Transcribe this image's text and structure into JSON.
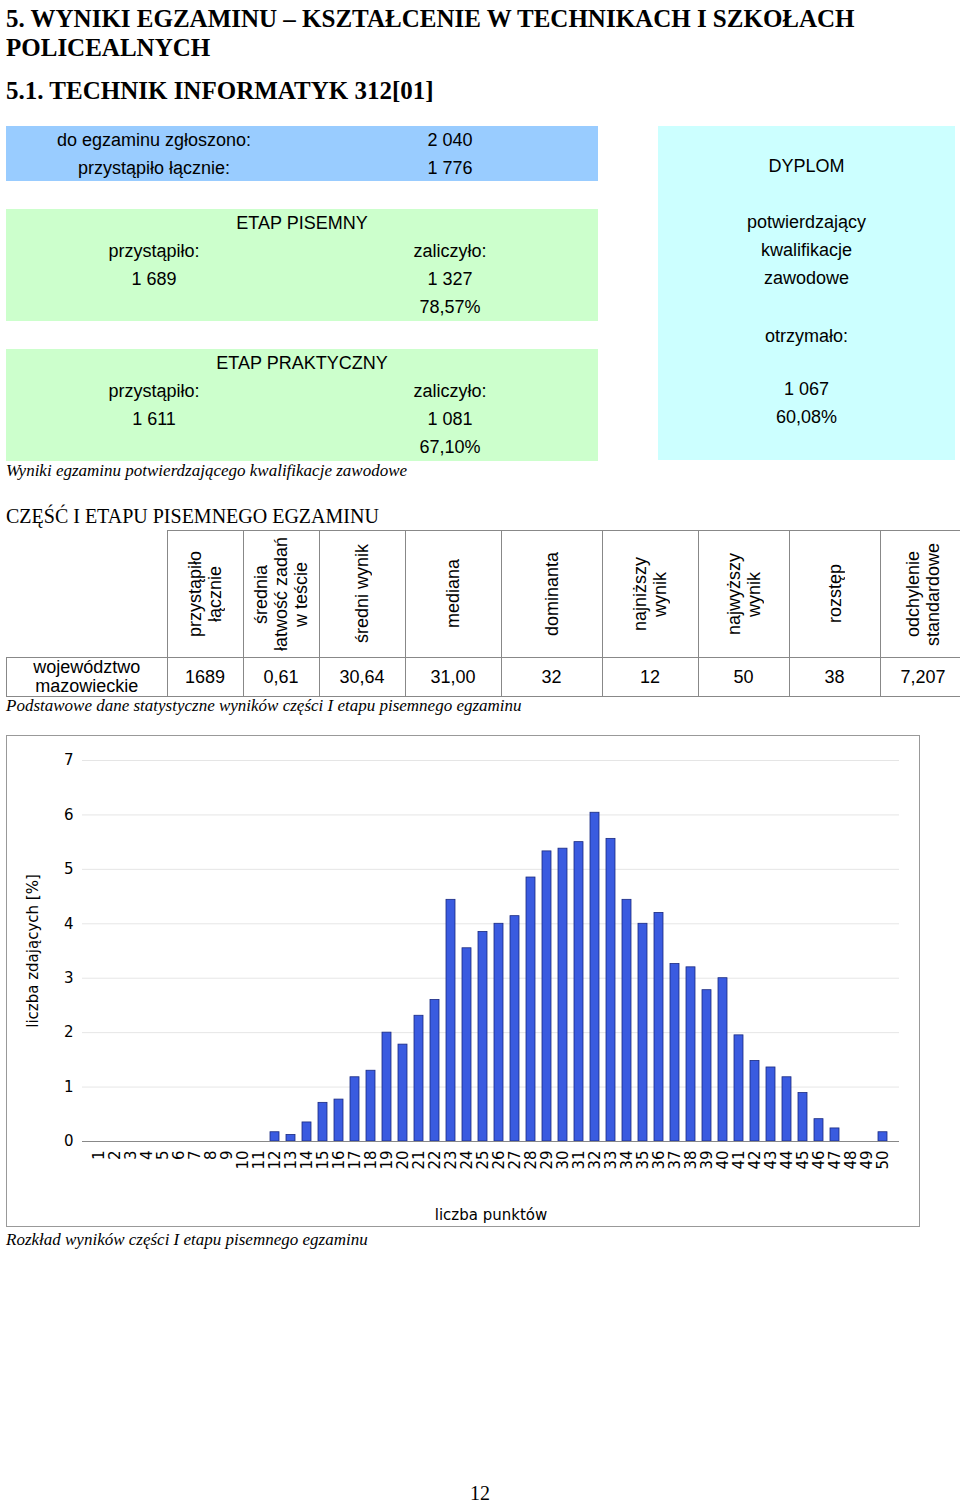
{
  "header": {
    "title": "5. WYNIKI EGZAMINU – KSZTAŁCENIE W TECHNIKACH I SZKOŁACH POLICEALNYCH",
    "subtitle": "5.1. TECHNIK INFORMATYK 312[01]"
  },
  "registration": {
    "rows": [
      [
        "do egzaminu zgłoszono:",
        "2 040"
      ],
      [
        "przystąpiło łącznie:",
        "1 776"
      ]
    ]
  },
  "written_stage": {
    "title": "ETAP PISEMNY",
    "labels": [
      "przystąpiło:",
      "zaliczyło:"
    ],
    "values": [
      "1 689",
      "1 327"
    ],
    "percent": "78,57%"
  },
  "practical_stage": {
    "title": "ETAP PRAKTYCZNY",
    "labels": [
      "przystąpiło:",
      "zaliczyło:"
    ],
    "values": [
      "1 611",
      "1 081"
    ],
    "percent": "67,10%"
  },
  "diploma": {
    "title": "DYPLOM",
    "description": [
      "potwierdzający",
      "kwalifikacje",
      "zawodowe"
    ],
    "label": "otrzymało:",
    "value": "1 067",
    "percent": "60,08%"
  },
  "summary_caption": "Wyniki egzaminu potwierdzającego kwalifikacje zawodowe",
  "section_title": "CZĘŚĆ I ETAPU PISEMNEGO EGZAMINU",
  "stats_table": {
    "header": [
      "",
      "przystąpiło łącznie",
      "średnia łatwość zadań w teście",
      "średni wynik",
      "mediana",
      "dominanta",
      "najniższy wynik",
      "najwyższy wynik",
      "rozstęp",
      "odchylenie standardowe"
    ],
    "rows": [
      [
        "województwo mazowieckie",
        "1689",
        "0,61",
        "30,64",
        "31,00",
        "32",
        "12",
        "50",
        "38",
        "7,207"
      ]
    ],
    "caption": "Podstawowe dane statystyczne wyników części I etapu pisemnego egzaminu"
  },
  "chart_data": {
    "type": "bar",
    "x_label": "liczba punktów",
    "y_label": "liczba zdających [%]",
    "categories": [
      "1",
      "2",
      "3",
      "4",
      "5",
      "6",
      "7",
      "8",
      "9",
      "10",
      "11",
      "12",
      "13",
      "14",
      "15",
      "16",
      "17",
      "18",
      "19",
      "20",
      "21",
      "22",
      "23",
      "24",
      "25",
      "26",
      "27",
      "28",
      "29",
      "30",
      "31",
      "32",
      "33",
      "34",
      "35",
      "36",
      "37",
      "38",
      "39",
      "40",
      "41",
      "42",
      "43",
      "44",
      "45",
      "46",
      "47",
      "48",
      "49",
      "50"
    ],
    "values": [
      0,
      0,
      0,
      0,
      0,
      0,
      0,
      0,
      0,
      0,
      0,
      0.17,
      0.12,
      0.35,
      0.71,
      0.77,
      1.18,
      1.3,
      2.0,
      1.78,
      2.31,
      2.6,
      4.44,
      3.55,
      3.85,
      4.0,
      4.14,
      4.85,
      5.33,
      5.38,
      5.5,
      6.04,
      5.56,
      4.44,
      4.0,
      4.2,
      3.26,
      3.2,
      2.78,
      3.0,
      1.95,
      1.48,
      1.36,
      1.18,
      0.89,
      0.41,
      0.24,
      0,
      0,
      0.17
    ],
    "color": "#3a5be0",
    "ylim": [
      0,
      7
    ],
    "yticks": [
      0,
      1,
      2,
      3,
      4,
      5,
      6,
      7
    ],
    "grid": true
  },
  "chart_caption": "Rozkład wyników części I etapu pisemnego egzaminu",
  "page_number": "12"
}
